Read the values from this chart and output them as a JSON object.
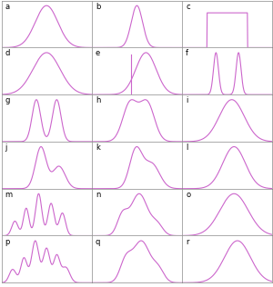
{
  "nrows": 6,
  "ncols": 3,
  "labels": [
    "a",
    "b",
    "c",
    "d",
    "e",
    "f",
    "g",
    "h",
    "i",
    "j",
    "k",
    "l",
    "m",
    "n",
    "o",
    "p",
    "q",
    "r"
  ],
  "line_color": "#CC66CC",
  "line_width": 0.8,
  "bg_color": "#FFFFFF",
  "figsize": [
    3.0,
    3.16
  ],
  "dpi": 100,
  "spine_color": "#888888",
  "spine_lw": 0.5
}
